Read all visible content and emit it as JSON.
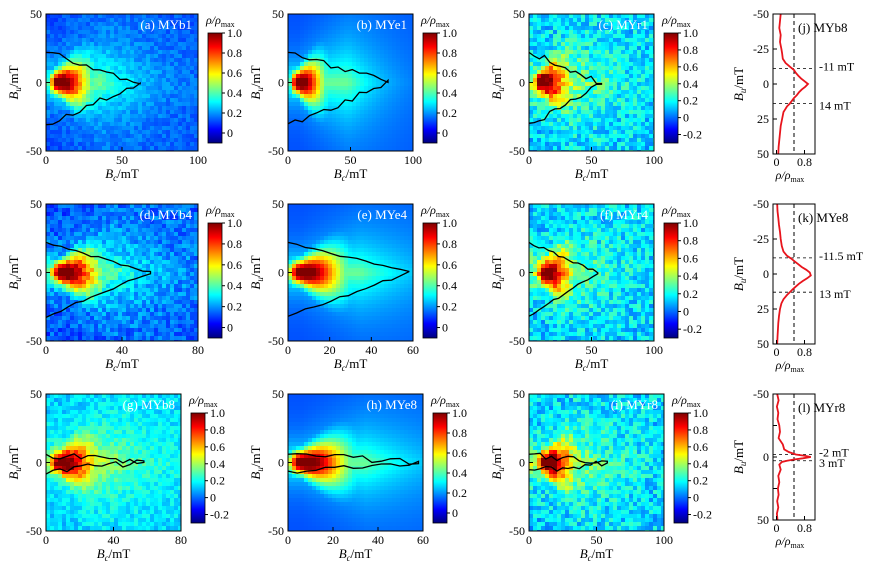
{
  "colorbar": {
    "title": "ρ/ρmax",
    "stops": [
      "#00007f",
      "#0000ff",
      "#007fff",
      "#00ffff",
      "#7fff7f",
      "#ffff00",
      "#ff7f00",
      "#ff0000",
      "#7f0000"
    ]
  },
  "colors": {
    "profile_line": "#e8141c",
    "contour": "#000000",
    "field_bg": "#1e5fd8"
  },
  "chart_data": [
    {
      "type": "heatmap",
      "panel": "(a) MYb1",
      "label": "(a) MYb1",
      "xlabel": "Bc/mT",
      "ylabel": "Bu/mT",
      "xlim": [
        0,
        100
      ],
      "ylim": [
        -50,
        50
      ],
      "xticks": [
        "0",
        "50",
        "100"
      ],
      "yticks": [
        "50",
        "0",
        "-50"
      ],
      "colorbar_ticks": [
        "1.0",
        "0.8",
        "0.6",
        "0.4",
        "0.2",
        "0"
      ],
      "colorbar_range": [
        -0.1,
        1.0
      ],
      "peak": {
        "x": 8,
        "y": 0,
        "value": 1.0
      },
      "contour_tip_x": 62,
      "noise": "low"
    },
    {
      "type": "heatmap",
      "panel": "(d) MYb4",
      "label": "(d) MYb4",
      "xlabel": "Bc/mT",
      "ylabel": "Bu/mT",
      "xlim": [
        0,
        80
      ],
      "ylim": [
        -50,
        50
      ],
      "xticks": [
        "0",
        "40",
        "80"
      ],
      "yticks": [
        "50",
        "0",
        "-50"
      ],
      "colorbar_ticks": [
        "1.0",
        "0.8",
        "0.6",
        "0.4",
        "0.2",
        "0"
      ],
      "colorbar_range": [
        -0.1,
        1.0
      ],
      "peak": {
        "x": 8,
        "y": 0,
        "value": 1.0
      },
      "contour_tip_x": 55,
      "noise": "medium"
    },
    {
      "type": "heatmap",
      "panel": "(g) MYb8",
      "label": "(g) MYb8",
      "xlabel": "Bc/mT",
      "ylabel": "Bu/mT",
      "xlim": [
        0,
        80
      ],
      "ylim": [
        -50,
        50
      ],
      "xticks": [
        "0",
        "40",
        "80"
      ],
      "yticks": [
        "50",
        "0",
        "-50"
      ],
      "colorbar_ticks": [
        "1.0",
        "0.8",
        "0.6",
        "0.4",
        "0.2",
        "0",
        "-0.2"
      ],
      "colorbar_range": [
        -0.3,
        1.0
      ],
      "peak": {
        "x": 8,
        "y": 0,
        "value": 1.0
      },
      "contour_tip_x": 58,
      "noise": "medium"
    },
    {
      "type": "heatmap",
      "panel": "(b) MYe1",
      "label": "(b) MYe1",
      "xlabel": "Bc/mT",
      "ylabel": "Bu/mT",
      "xlim": [
        0,
        100
      ],
      "ylim": [
        -50,
        50
      ],
      "xticks": [
        "0",
        "50",
        "100"
      ],
      "yticks": [
        "50",
        "0",
        "-50"
      ],
      "colorbar_ticks": [
        "1.0",
        "0.8",
        "0.6",
        "0.4",
        "0.2",
        "0"
      ],
      "colorbar_range": [
        -0.1,
        1.0
      ],
      "peak": {
        "x": 8,
        "y": 0,
        "value": 1.0
      },
      "contour_tip_x": 80,
      "noise": "none"
    },
    {
      "type": "heatmap",
      "panel": "(e) MYe4",
      "label": "(e) MYe4",
      "xlabel": "Bc/mT",
      "ylabel": "Bu/mT",
      "xlim": [
        0,
        60
      ],
      "ylim": [
        -50,
        50
      ],
      "xticks": [
        "0",
        "20",
        "40",
        "60"
      ],
      "yticks": [
        "50",
        "0",
        "-50"
      ],
      "colorbar_ticks": [
        "1.0",
        "0.8",
        "0.6",
        "0.4",
        "0.2",
        "0"
      ],
      "colorbar_range": [
        -0.1,
        1.0
      ],
      "peak": {
        "x": 6,
        "y": 0,
        "value": 1.0
      },
      "contour_tip_x": 58,
      "noise": "none"
    },
    {
      "type": "heatmap",
      "panel": "(h) MYe8",
      "label": "(h) MYe8",
      "xlabel": "Bc/mT",
      "ylabel": "Bu/mT",
      "xlim": [
        0,
        60
      ],
      "ylim": [
        -50,
        50
      ],
      "xticks": [
        "0",
        "20",
        "40",
        "60"
      ],
      "yticks": [
        "50",
        "0",
        "-50"
      ],
      "colorbar_ticks": [
        "1.0",
        "0.8",
        "0.6",
        "0.4",
        "0.2",
        "0"
      ],
      "colorbar_range": [
        -0.1,
        1.0
      ],
      "peak": {
        "x": 6,
        "y": 0,
        "value": 1.0
      },
      "contour_tip_x": 58,
      "noise": "none"
    },
    {
      "type": "heatmap",
      "panel": "(c) MYr1",
      "label": "(c) MYr1",
      "xlabel": "Bc/mT",
      "ylabel": "Bu/mT",
      "xlim": [
        0,
        100
      ],
      "ylim": [
        -50,
        50
      ],
      "xticks": [
        "0",
        "50",
        "100"
      ],
      "yticks": [
        "50",
        "0",
        "-50"
      ],
      "colorbar_ticks": [
        "1.0",
        "0.8",
        "0.6",
        "0.4",
        "0.2",
        "0",
        "-0.2"
      ],
      "colorbar_range": [
        -0.3,
        1.0
      ],
      "peak": {
        "x": 10,
        "y": 0,
        "value": 1.0
      },
      "contour_tip_x": 58,
      "noise": "high"
    },
    {
      "type": "heatmap",
      "panel": "(f) MYr4",
      "label": "(f) MYr4",
      "xlabel": "Bc/mT",
      "ylabel": "Bu/mT",
      "xlim": [
        0,
        100
      ],
      "ylim": [
        -50,
        50
      ],
      "xticks": [
        "0",
        "50",
        "100"
      ],
      "yticks": [
        "50",
        "0",
        "-50"
      ],
      "colorbar_ticks": [
        "1.0",
        "0.8",
        "0.6",
        "0.4",
        "0.2",
        "0",
        "-0.2"
      ],
      "colorbar_range": [
        -0.3,
        1.0
      ],
      "peak": {
        "x": 12,
        "y": 0,
        "value": 1.0
      },
      "contour_tip_x": 55,
      "noise": "high"
    },
    {
      "type": "heatmap",
      "panel": "(i) MYr8",
      "label": "(i) MYr8",
      "xlabel": "Bc/mT",
      "ylabel": "Bu/mT",
      "xlim": [
        0,
        100
      ],
      "ylim": [
        -50,
        50
      ],
      "xticks": [
        "0",
        "50",
        "100"
      ],
      "yticks": [
        "50",
        "0",
        "-50"
      ],
      "colorbar_ticks": [
        "1.0",
        "0.8",
        "0.6",
        "0.4",
        "0.2",
        "0",
        "-0.2"
      ],
      "colorbar_range": [
        -0.3,
        1.0
      ],
      "peak": {
        "x": 12,
        "y": 0,
        "value": 1.0
      },
      "contour_tip_x": 58,
      "noise": "high"
    },
    {
      "type": "line",
      "panel": "(j) MYb8",
      "label": "(j) MYb8",
      "xlabel": "ρ/ρmax",
      "ylabel": "Bu/mT",
      "xlim": [
        -0.1,
        1.1
      ],
      "ylim": [
        50,
        -50
      ],
      "xticks": [
        "0",
        "0.8"
      ],
      "yticks": [
        "-50",
        "-25",
        "0",
        "25",
        "50"
      ],
      "threshold": 0.5,
      "annotations": [
        {
          "text": "-11 mT",
          "y": -11
        },
        {
          "text": "14 mT",
          "y": 14
        }
      ],
      "y": [
        -50,
        -45,
        -40,
        -35,
        -30,
        -25,
        -22,
        -18,
        -15,
        -12,
        -10,
        -8,
        -6,
        -4,
        -2,
        0,
        2,
        4,
        6,
        8,
        10,
        12,
        14,
        16,
        18,
        20,
        25,
        30,
        35,
        40,
        45,
        50
      ],
      "x": [
        0.12,
        0.1,
        0.08,
        0.12,
        0.1,
        0.14,
        0.16,
        0.18,
        0.26,
        0.4,
        0.5,
        0.55,
        0.62,
        0.7,
        0.8,
        0.9,
        0.82,
        0.72,
        0.64,
        0.58,
        0.5,
        0.44,
        0.38,
        0.3,
        0.25,
        0.2,
        0.16,
        0.12,
        0.1,
        0.08,
        0.06,
        0.05
      ]
    },
    {
      "type": "line",
      "panel": "(k) MYe8",
      "label": "(k) MYe8",
      "xlabel": "ρ/ρmax",
      "ylabel": "Bu/mT",
      "xlim": [
        -0.1,
        1.1
      ],
      "ylim": [
        50,
        -50
      ],
      "xticks": [
        "0",
        "0.8"
      ],
      "yticks": [
        "-50",
        "-25",
        "0",
        "25",
        "50"
      ],
      "threshold": 0.5,
      "annotations": [
        {
          "text": "-11.5 mT",
          "y": -11.5
        },
        {
          "text": "13 mT",
          "y": 13
        }
      ],
      "y": [
        -50,
        -45,
        -40,
        -35,
        -30,
        -25,
        -20,
        -16,
        -13,
        -11,
        -9,
        -7,
        -5,
        -3,
        -1,
        1,
        3,
        5,
        7,
        9,
        11,
        13,
        15,
        18,
        21,
        25,
        30,
        35,
        40,
        45,
        50
      ],
      "x": [
        0.02,
        0.03,
        0.05,
        0.07,
        0.1,
        0.12,
        0.15,
        0.2,
        0.3,
        0.42,
        0.52,
        0.62,
        0.72,
        0.85,
        0.95,
        0.98,
        0.88,
        0.75,
        0.64,
        0.55,
        0.46,
        0.38,
        0.3,
        0.2,
        0.14,
        0.1,
        0.07,
        0.05,
        0.04,
        0.03,
        0.02
      ]
    },
    {
      "type": "line",
      "panel": "(l) MYr8",
      "label": "(l) MYr8",
      "xlabel": "ρ/ρmax",
      "ylabel": "Bu/mT",
      "xlim": [
        -0.1,
        1.1
      ],
      "ylim": [
        50,
        -50
      ],
      "xticks": [
        "0",
        "0.8"
      ],
      "yticks": [
        "-50",
        "-25",
        "0",
        "25",
        "50"
      ],
      "threshold": 0.5,
      "annotations": [
        {
          "text": "-2 mT",
          "y": -2
        },
        {
          "text": "3 mT",
          "y": 3
        }
      ],
      "y": [
        -50,
        -45,
        -40,
        -35,
        -30,
        -25,
        -20,
        -15,
        -10,
        -6,
        -4,
        -2,
        -1,
        0,
        1,
        2,
        3,
        4,
        6,
        10,
        15,
        20,
        25,
        30,
        35,
        40,
        45,
        50
      ],
      "x": [
        0.02,
        0.06,
        0.01,
        0.05,
        0.03,
        0.08,
        0.1,
        0.06,
        0.18,
        0.22,
        0.35,
        0.55,
        0.8,
        0.98,
        0.75,
        0.5,
        0.3,
        0.15,
        0.08,
        0.12,
        0.05,
        0.08,
        0.04,
        0.06,
        0.02,
        0.05,
        0.01,
        0.03
      ]
    }
  ]
}
